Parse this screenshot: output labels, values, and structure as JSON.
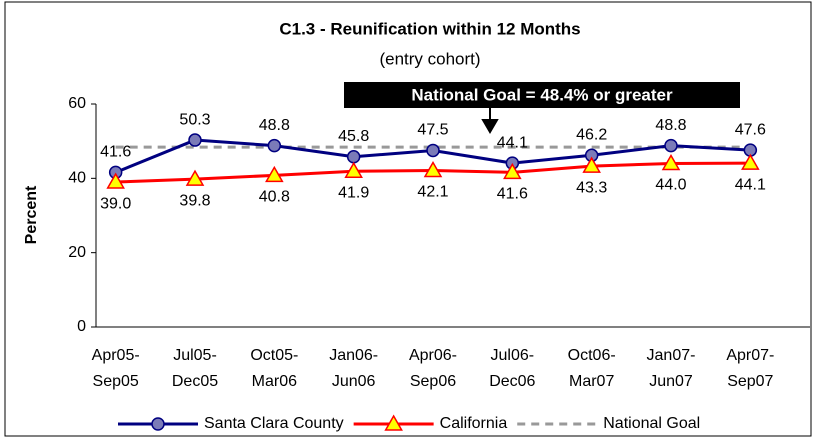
{
  "chart_data": {
    "type": "line",
    "title": "C1.3 - Reunification within 12 Months",
    "subtitle": "(entry cohort)",
    "annotation": "National Goal = 48.4% or greater",
    "y_label": "Percent",
    "categories": [
      [
        "Apr05-",
        "Sep05"
      ],
      [
        "Jul05-",
        "Dec05"
      ],
      [
        "Oct05-",
        "Mar06"
      ],
      [
        "Jan06-",
        "Jun06"
      ],
      [
        "Apr06-",
        "Sep06"
      ],
      [
        "Jul06-",
        "Dec06"
      ],
      [
        "Oct06-",
        "Mar07"
      ],
      [
        "Jan07-",
        "Jun07"
      ],
      [
        "Apr07-",
        "Sep07"
      ]
    ],
    "series": [
      {
        "name": "Santa Clara County",
        "color": "#000080",
        "marker": "circle",
        "marker_color": "#7b7bb8",
        "label_position": "above",
        "values": [
          41.6,
          50.3,
          48.8,
          45.8,
          47.5,
          44.1,
          46.2,
          48.8,
          47.6
        ],
        "value_labels": [
          "41.6",
          "50.3",
          "48.8",
          "45.8",
          "47.5",
          "44.1",
          "46.2",
          "48.8",
          "47.6"
        ]
      },
      {
        "name": "California",
        "color": "#ff0000",
        "marker": "triangle",
        "marker_color": "#ffff00",
        "label_position": "below",
        "values": [
          39.0,
          39.8,
          40.8,
          41.9,
          42.1,
          41.6,
          43.3,
          44.0,
          44.1
        ],
        "value_labels": [
          "39.0",
          "39.8",
          "40.8",
          "41.9",
          "42.1",
          "41.6",
          "43.3",
          "44.0",
          "44.1"
        ]
      },
      {
        "name": "National Goal",
        "color": "#999999",
        "dashed": true,
        "values": [
          48.4,
          48.4,
          48.4,
          48.4,
          48.4,
          48.4,
          48.4,
          48.4,
          48.4
        ]
      }
    ],
    "ylim": [
      0,
      60
    ],
    "yticks": [
      0,
      20,
      40,
      60
    ],
    "grid": false
  }
}
